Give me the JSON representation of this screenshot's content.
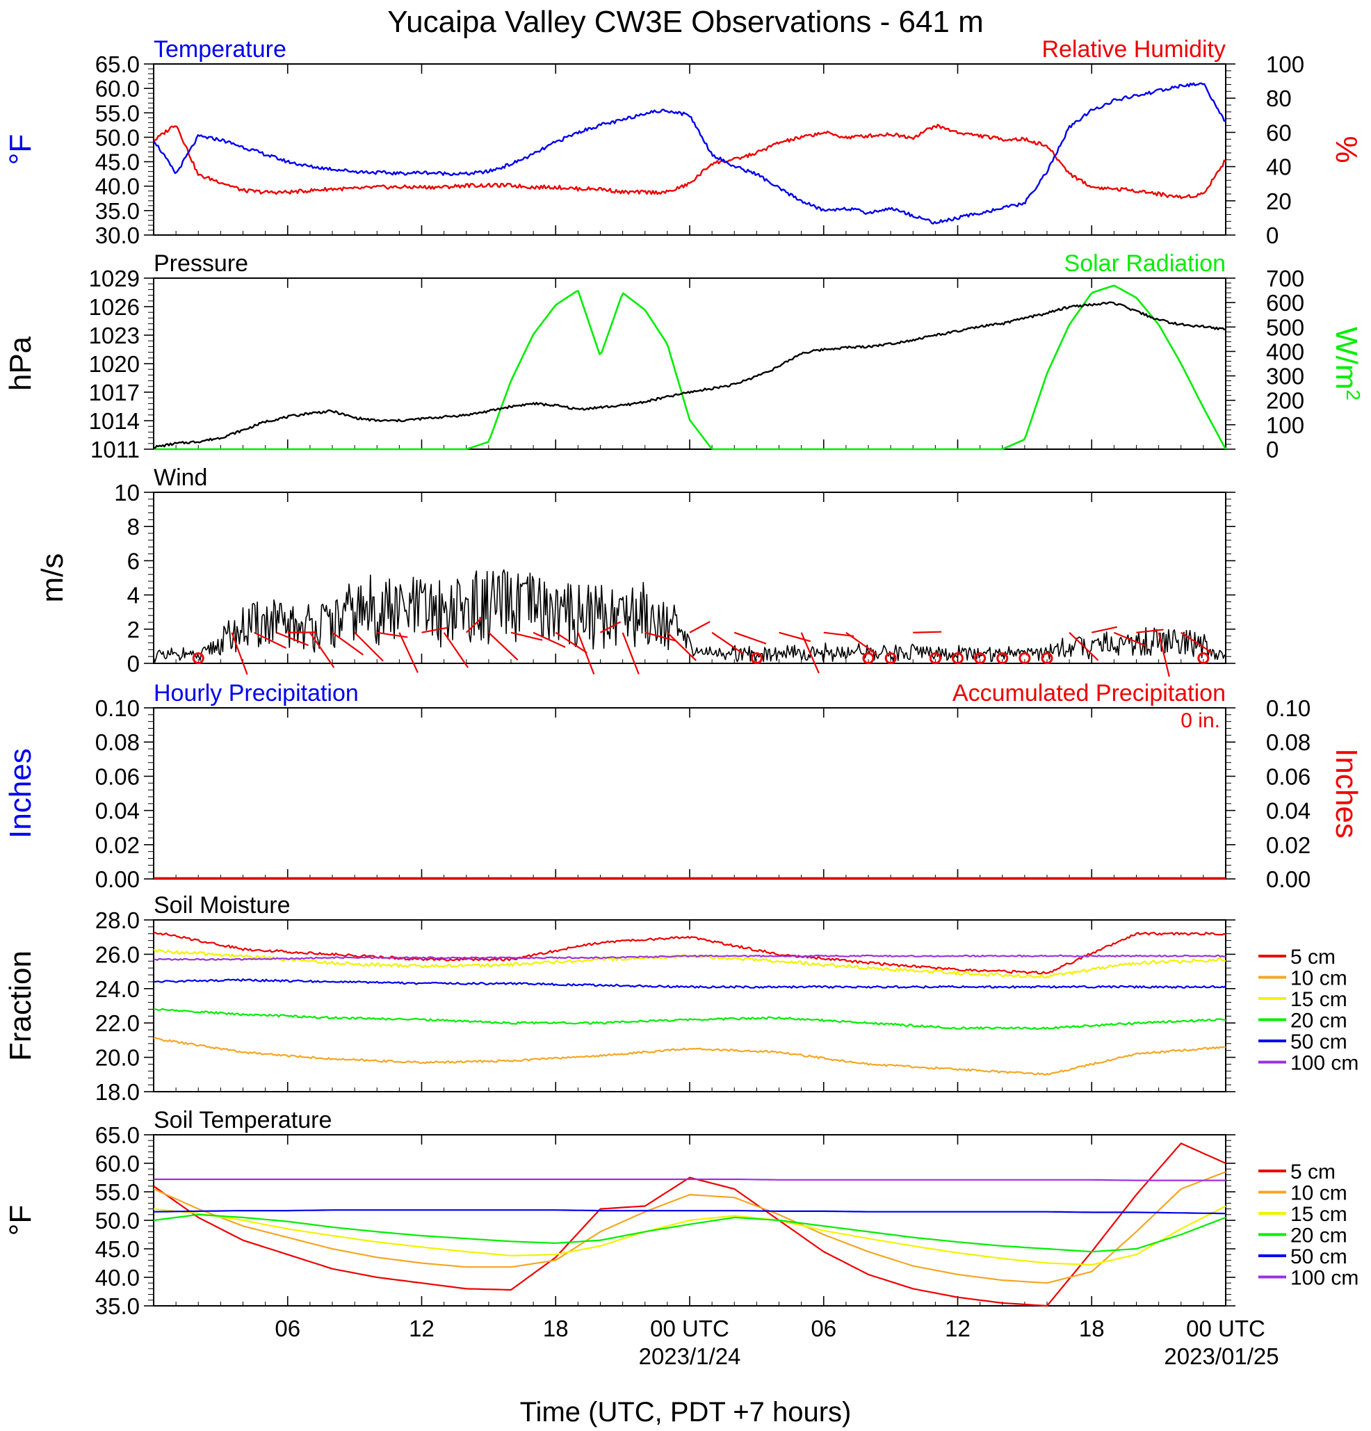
{
  "title": "Yucaipa Valley CW3E Observations - 641 m",
  "xaxis": {
    "label": "Time (UTC, PDT +7 hours)",
    "tick_labels": [
      "06",
      "12",
      "18",
      "00 UTC",
      "06",
      "12",
      "18",
      "00 UTC"
    ],
    "date_labels": [
      "2023/1/24",
      "2023/01/25"
    ]
  },
  "colors": {
    "blue": "#0000ee",
    "red": "#ee0000",
    "green": "#00ee00",
    "black": "#000000",
    "orange": "#f5a623",
    "yellow": "#f2f200",
    "purple": "#9b30e0"
  },
  "chart_data": [
    {
      "type": "line",
      "title_left": "Temperature",
      "title_right": "Relative Humidity",
      "ylabel_left": "°F",
      "ylabel_right": "%",
      "ylim_left": [
        30,
        65
      ],
      "ylim_right": [
        0,
        100
      ],
      "yticks_left": [
        "65.0",
        "60.0",
        "55.0",
        "50.0",
        "45.0",
        "40.0",
        "35.0",
        "30.0"
      ],
      "yticks_right": [
        "100",
        "80",
        "60",
        "40",
        "20",
        "0"
      ],
      "x_hours": [
        0,
        1,
        2,
        3,
        4,
        5,
        6,
        7,
        8,
        9,
        10,
        11,
        12,
        13,
        14,
        15,
        16,
        17,
        18,
        19,
        20,
        21,
        22,
        23,
        24,
        25,
        26,
        27,
        28,
        29,
        30,
        31,
        32,
        33,
        34,
        35,
        36,
        37,
        38,
        39,
        40,
        41,
        42,
        43,
        44,
        45,
        46,
        47,
        48
      ],
      "series": [
        {
          "name": "Temperature",
          "axis": "left",
          "color": "blue",
          "values": [
            49.5,
            42.5,
            50.2,
            49.5,
            48.0,
            46.5,
            45.0,
            44.0,
            43.5,
            43.0,
            42.8,
            42.6,
            42.8,
            42.6,
            42.5,
            43.0,
            44.5,
            46.5,
            49.0,
            51.0,
            52.5,
            53.5,
            55.0,
            55.5,
            54.5,
            46.5,
            44.0,
            42.5,
            39.5,
            37.0,
            35.0,
            35.5,
            34.5,
            35.5,
            34.0,
            32.5,
            33.5,
            34.5,
            35.5,
            36.5,
            43.0,
            52.0,
            55.5,
            57.5,
            58.5,
            59.5,
            60.5,
            61.0,
            53.0
          ]
        },
        {
          "name": "Relative Humidity",
          "axis": "right",
          "color": "red",
          "values": [
            55,
            65,
            35,
            31,
            26,
            25,
            25,
            26,
            27,
            27,
            28,
            28,
            28,
            28,
            29,
            29,
            29,
            28,
            28,
            27,
            27,
            25,
            25,
            25,
            30,
            42,
            44,
            48,
            54,
            57,
            60,
            57,
            58,
            59,
            57,
            64,
            60,
            58,
            56,
            56,
            52,
            36,
            28,
            27,
            26,
            24,
            22,
            24,
            44
          ]
        }
      ]
    },
    {
      "type": "line",
      "title_left": "Pressure",
      "title_right": "Solar Radiation",
      "ylabel_left": "hPa",
      "ylabel_right": "W/m",
      "ylabel_right_sup": "2",
      "ylim_left": [
        1011,
        1029
      ],
      "ylim_right": [
        0,
        700
      ],
      "yticks_left": [
        "1029",
        "1026",
        "1023",
        "1020",
        "1017",
        "1014",
        "1011"
      ],
      "yticks_right": [
        "700",
        "600",
        "500",
        "400",
        "300",
        "200",
        "100",
        "0"
      ],
      "x_hours": [
        0,
        1,
        2,
        3,
        4,
        5,
        6,
        7,
        8,
        9,
        10,
        11,
        12,
        13,
        14,
        15,
        16,
        17,
        18,
        19,
        20,
        21,
        22,
        23,
        24,
        25,
        26,
        27,
        28,
        29,
        30,
        31,
        32,
        33,
        34,
        35,
        36,
        37,
        38,
        39,
        40,
        41,
        42,
        43,
        44,
        45,
        46,
        47,
        48
      ],
      "series": [
        {
          "name": "Pressure",
          "axis": "left",
          "color": "black",
          "values": [
            1011.2,
            1011.6,
            1011.8,
            1012.2,
            1013.0,
            1013.9,
            1014.4,
            1014.8,
            1015.0,
            1014.3,
            1014.0,
            1014.0,
            1014.2,
            1014.4,
            1014.6,
            1015.0,
            1015.5,
            1015.8,
            1015.6,
            1015.2,
            1015.4,
            1015.6,
            1016.0,
            1016.5,
            1017.0,
            1017.4,
            1017.8,
            1018.7,
            1019.7,
            1021.1,
            1021.5,
            1021.7,
            1021.8,
            1022.1,
            1022.5,
            1023.0,
            1023.4,
            1023.9,
            1024.2,
            1024.8,
            1025.3,
            1026.0,
            1026.2,
            1026.4,
            1025.5,
            1024.6,
            1024.1,
            1023.9,
            1023.6
          ]
        },
        {
          "name": "Solar Radiation",
          "axis": "right",
          "color": "green",
          "values": [
            0,
            0,
            0,
            0,
            0,
            0,
            0,
            0,
            0,
            0,
            0,
            0,
            0,
            0,
            0,
            30,
            280,
            470,
            590,
            650,
            380,
            640,
            570,
            430,
            120,
            0,
            0,
            0,
            0,
            0,
            0,
            0,
            0,
            0,
            0,
            0,
            0,
            0,
            0,
            40,
            310,
            510,
            640,
            670,
            620,
            510,
            350,
            170,
            0
          ]
        }
      ]
    },
    {
      "type": "line",
      "title_left": "Wind",
      "ylabel_left": "m/s",
      "ylim_left": [
        0,
        10
      ],
      "yticks_left": [
        "10",
        "8",
        "6",
        "4",
        "2",
        "0"
      ],
      "x_hours": [
        0,
        1,
        2,
        3,
        4,
        5,
        6,
        7,
        8,
        9,
        10,
        11,
        12,
        13,
        14,
        15,
        16,
        17,
        18,
        19,
        20,
        21,
        22,
        23,
        24,
        25,
        26,
        27,
        28,
        29,
        30,
        31,
        32,
        33,
        34,
        35,
        36,
        37,
        38,
        39,
        40,
        41,
        42,
        43,
        44,
        45,
        46,
        47,
        48
      ],
      "series": [
        {
          "name": "Wind speed",
          "axis": "left",
          "color": "black",
          "values": [
            0.4,
            0.5,
            0.4,
            1.2,
            2.0,
            2.4,
            2.1,
            2.2,
            2.3,
            2.9,
            3.2,
            3.0,
            3.1,
            3.0,
            3.2,
            3.3,
            3.3,
            3.2,
            3.0,
            2.9,
            2.8,
            3.0,
            2.9,
            2.5,
            1.0,
            0.6,
            0.7,
            0.6,
            0.6,
            0.5,
            0.7,
            0.6,
            0.7,
            0.6,
            0.7,
            0.6,
            0.6,
            0.6,
            0.5,
            0.6,
            0.6,
            1.0,
            1.0,
            1.1,
            1.2,
            1.3,
            1.2,
            1.0,
            0.4
          ]
        }
      ],
      "barbs_hours": [
        2,
        3.5,
        4.5,
        5.5,
        6,
        7,
        8,
        9,
        10,
        11,
        12,
        13,
        14,
        15,
        16,
        17,
        18,
        19,
        20,
        21,
        22,
        23,
        24,
        25,
        26,
        27,
        28,
        29,
        30,
        31,
        32,
        33,
        34,
        35,
        36,
        37,
        38,
        39,
        40,
        41,
        42,
        43,
        44,
        45,
        46,
        47
      ],
      "barbs_calm_hours": [
        2,
        27,
        32,
        33,
        35,
        36,
        37,
        38,
        39,
        40,
        47
      ]
    },
    {
      "type": "line",
      "title_left": "Hourly Precipitation",
      "title_right": "Accumulated Precipitation",
      "annotation": "0 in.",
      "ylabel_left": "Inches",
      "ylabel_right": "Inches",
      "ylim_left": [
        0,
        0.1
      ],
      "ylim_right": [
        0,
        0.1
      ],
      "yticks_left": [
        "0.10",
        "0.08",
        "0.06",
        "0.04",
        "0.02",
        "0.00"
      ],
      "yticks_right": [
        "0.10",
        "0.08",
        "0.06",
        "0.04",
        "0.02",
        "0.00"
      ],
      "series": [
        {
          "name": "Hourly Precipitation",
          "axis": "left",
          "color": "blue",
          "values": [
            0,
            0
          ]
        },
        {
          "name": "Accumulated Precipitation",
          "axis": "right",
          "color": "red",
          "values": [
            0,
            0
          ]
        }
      ]
    },
    {
      "type": "line",
      "title_left": "Soil Moisture",
      "ylabel_left": "Fraction",
      "ylim_left": [
        18,
        28
      ],
      "yticks_left": [
        "28.0",
        "26.0",
        "24.0",
        "22.0",
        "20.0",
        "18.0"
      ],
      "legend": [
        "5 cm",
        "10 cm",
        "15 cm",
        "20 cm",
        "50 cm",
        "100 cm"
      ],
      "x_hours": [
        0,
        4,
        8,
        12,
        16,
        20,
        24,
        28,
        32,
        36,
        40,
        44,
        48
      ],
      "series": [
        {
          "name": "5 cm",
          "color": "red",
          "values": [
            27.3,
            26.3,
            26.0,
            25.7,
            25.7,
            26.7,
            27.0,
            26.0,
            25.5,
            25.1,
            24.9,
            27.2,
            27.2
          ]
        },
        {
          "name": "10 cm",
          "color": "orange",
          "values": [
            21.1,
            20.3,
            19.9,
            19.7,
            19.8,
            20.1,
            20.5,
            20.3,
            19.6,
            19.3,
            19.0,
            20.2,
            20.6
          ]
        },
        {
          "name": "15 cm",
          "color": "yellow",
          "values": [
            26.2,
            25.9,
            25.5,
            25.3,
            25.4,
            25.7,
            25.9,
            25.6,
            25.2,
            24.9,
            24.7,
            25.5,
            25.7
          ]
        },
        {
          "name": "20 cm",
          "color": "green",
          "values": [
            22.8,
            22.5,
            22.3,
            22.2,
            22.0,
            22.0,
            22.2,
            22.3,
            22.0,
            21.7,
            21.7,
            22.0,
            22.2
          ]
        },
        {
          "name": "50 cm",
          "color": "blue",
          "values": [
            24.4,
            24.5,
            24.4,
            24.3,
            24.3,
            24.2,
            24.1,
            24.1,
            24.1,
            24.1,
            24.1,
            24.1,
            24.1
          ]
        },
        {
          "name": "100 cm",
          "color": "purple",
          "values": [
            25.7,
            25.7,
            25.8,
            25.8,
            25.8,
            25.8,
            25.9,
            25.9,
            25.9,
            25.9,
            25.9,
            25.9,
            25.9
          ]
        }
      ]
    },
    {
      "type": "line",
      "title_left": "Soil Temperature",
      "ylabel_left": "°F",
      "ylim_left": [
        35,
        65
      ],
      "yticks_left": [
        "65.0",
        "60.0",
        "55.0",
        "50.0",
        "45.0",
        "40.0",
        "35.0"
      ],
      "legend": [
        "5 cm",
        "10 cm",
        "15 cm",
        "20 cm",
        "50 cm",
        "100 cm"
      ],
      "x_hours": [
        0,
        2,
        4,
        6,
        8,
        10,
        12,
        14,
        16,
        18,
        20,
        22,
        24,
        26,
        28,
        30,
        32,
        34,
        36,
        38,
        40,
        42,
        44,
        46,
        48
      ],
      "series": [
        {
          "name": "5 cm",
          "color": "red",
          "values": [
            56.0,
            50.5,
            46.5,
            44.0,
            41.5,
            40.0,
            39.0,
            38.0,
            37.8,
            43.5,
            52.0,
            52.5,
            57.5,
            55.5,
            50.0,
            44.5,
            40.5,
            38.0,
            36.5,
            35.5,
            35.0,
            44.5,
            54.5,
            63.5,
            60.0
          ]
        },
        {
          "name": "10 cm",
          "color": "orange",
          "values": [
            55.5,
            52.0,
            49.0,
            47.0,
            45.0,
            43.5,
            42.5,
            41.8,
            41.8,
            43.0,
            48.0,
            51.5,
            54.5,
            54.0,
            51.0,
            47.5,
            44.5,
            42.0,
            40.5,
            39.5,
            39.0,
            41.0,
            48.0,
            55.5,
            58.5
          ]
        },
        {
          "name": "15 cm",
          "color": "yellow",
          "values": [
            52.0,
            51.2,
            50.0,
            48.5,
            47.3,
            46.2,
            45.3,
            44.5,
            43.8,
            44.0,
            45.5,
            48.0,
            50.0,
            50.8,
            50.0,
            48.2,
            46.8,
            45.5,
            44.3,
            43.3,
            42.5,
            42.2,
            44.0,
            48.5,
            52.5
          ]
        },
        {
          "name": "20 cm",
          "color": "green",
          "values": [
            50.0,
            51.0,
            50.5,
            49.8,
            48.8,
            48.0,
            47.3,
            46.8,
            46.3,
            46.0,
            46.5,
            48.0,
            49.3,
            50.5,
            50.0,
            49.0,
            48.0,
            47.0,
            46.2,
            45.5,
            45.0,
            44.5,
            45.0,
            47.5,
            50.5
          ]
        },
        {
          "name": "50 cm",
          "color": "blue",
          "values": [
            51.5,
            51.6,
            51.7,
            51.7,
            51.8,
            51.8,
            51.8,
            51.8,
            51.8,
            51.8,
            51.7,
            51.7,
            51.7,
            51.7,
            51.6,
            51.6,
            51.5,
            51.5,
            51.5,
            51.5,
            51.5,
            51.4,
            51.4,
            51.3,
            51.2
          ]
        },
        {
          "name": "100 cm",
          "color": "purple",
          "values": [
            57.2,
            57.2,
            57.2,
            57.2,
            57.2,
            57.2,
            57.2,
            57.2,
            57.2,
            57.2,
            57.2,
            57.2,
            57.2,
            57.2,
            57.1,
            57.1,
            57.1,
            57.1,
            57.1,
            57.1,
            57.1,
            57.1,
            57.0,
            57.0,
            57.0
          ]
        }
      ]
    }
  ]
}
